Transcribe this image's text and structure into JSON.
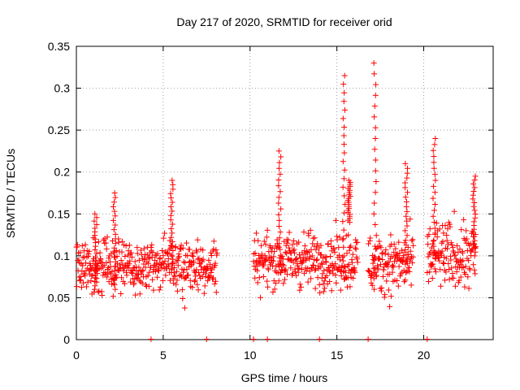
{
  "chart_data": {
    "type": "scatter",
    "title": "Day 217 of 2020, SRMTID for receiver orid",
    "xlabel": "GPS time / hours",
    "ylabel": "SRMTID / TECUs",
    "xlim": [
      0,
      24
    ],
    "ylim": [
      0,
      0.35
    ],
    "x_ticks": [
      0,
      5,
      10,
      15,
      20
    ],
    "x_tick_labels": [
      "0",
      "5",
      "10",
      "15",
      "20"
    ],
    "y_ticks": [
      0,
      0.05,
      0.1,
      0.15,
      0.2,
      0.25,
      0.3,
      0.35
    ],
    "y_tick_labels": [
      "0",
      "0.05",
      "0.1",
      "0.15",
      "0.2",
      "0.25",
      "0.3",
      "0.35"
    ],
    "grid": true,
    "marker": "+",
    "color": "#ff0000",
    "segments": [
      {
        "start": 0.0,
        "end": 8.1,
        "center": 0.088,
        "spread": 0.032,
        "step": 0.02
      },
      {
        "start": 10.2,
        "end": 16.2,
        "center": 0.095,
        "spread": 0.032,
        "step": 0.02
      },
      {
        "start": 16.8,
        "end": 19.4,
        "center": 0.09,
        "spread": 0.035,
        "step": 0.02
      },
      {
        "start": 20.2,
        "end": 23.0,
        "center": 0.1,
        "spread": 0.04,
        "step": 0.02
      }
    ],
    "spikes": [
      {
        "x": 1.1,
        "ymin": 0.06,
        "ymax": 0.15
      },
      {
        "x": 2.2,
        "ymin": 0.06,
        "ymax": 0.175
      },
      {
        "x": 5.5,
        "ymin": 0.08,
        "ymax": 0.19
      },
      {
        "x": 11.7,
        "ymin": 0.08,
        "ymax": 0.225
      },
      {
        "x": 15.4,
        "ymin": 0.1,
        "ymax": 0.315
      },
      {
        "x": 15.7,
        "ymin": 0.14,
        "ymax": 0.19
      },
      {
        "x": 17.2,
        "ymin": 0.06,
        "ymax": 0.33
      },
      {
        "x": 19.0,
        "ymin": 0.09,
        "ymax": 0.21
      },
      {
        "x": 20.6,
        "ymin": 0.09,
        "ymax": 0.24
      },
      {
        "x": 22.9,
        "ymin": 0.1,
        "ymax": 0.195
      }
    ],
    "baseline_marks": [
      4.3,
      7.5,
      10.2,
      11.0,
      14.0,
      16.8,
      20.2
    ]
  }
}
